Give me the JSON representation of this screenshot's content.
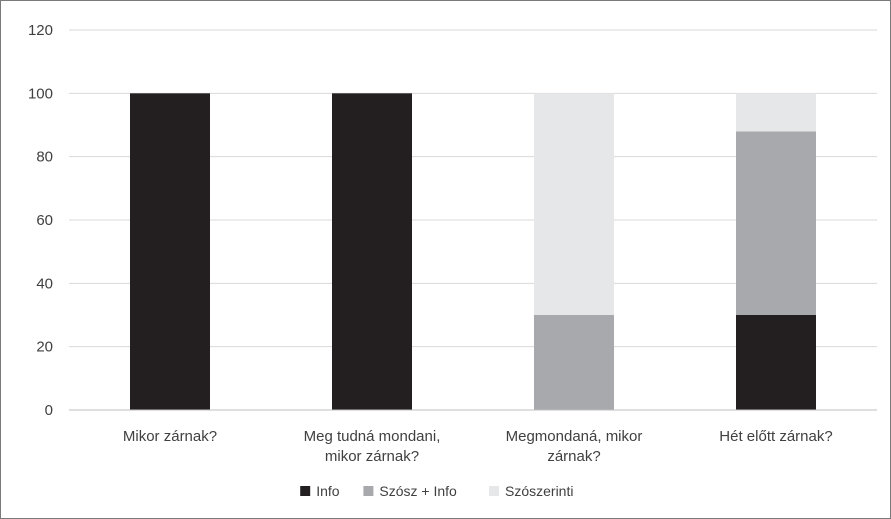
{
  "chart_data": {
    "type": "bar",
    "stacked": true,
    "categories": [
      [
        "Mikor zárnak?"
      ],
      [
        "Meg tudná mondani,",
        "mikor zárnak?"
      ],
      [
        "Megmondaná, mikor",
        "zárnak?"
      ],
      [
        "Hét előtt zárnak?"
      ]
    ],
    "series": [
      {
        "name": "Info",
        "color": "#231f20",
        "values": [
          100,
          100,
          0,
          30
        ]
      },
      {
        "name": "Szósz + Info",
        "color": "#a7a9ac",
        "values": [
          0,
          0,
          30,
          58
        ]
      },
      {
        "name": "Szószerinti",
        "color": "#e6e7e8",
        "values": [
          0,
          0,
          70,
          12
        ]
      }
    ],
    "ylim": [
      0,
      120
    ],
    "yticks": [
      0,
      20,
      40,
      60,
      80,
      100,
      120
    ],
    "grid": true,
    "legend_position": "bottom",
    "title": "",
    "xlabel": "",
    "ylabel": ""
  }
}
